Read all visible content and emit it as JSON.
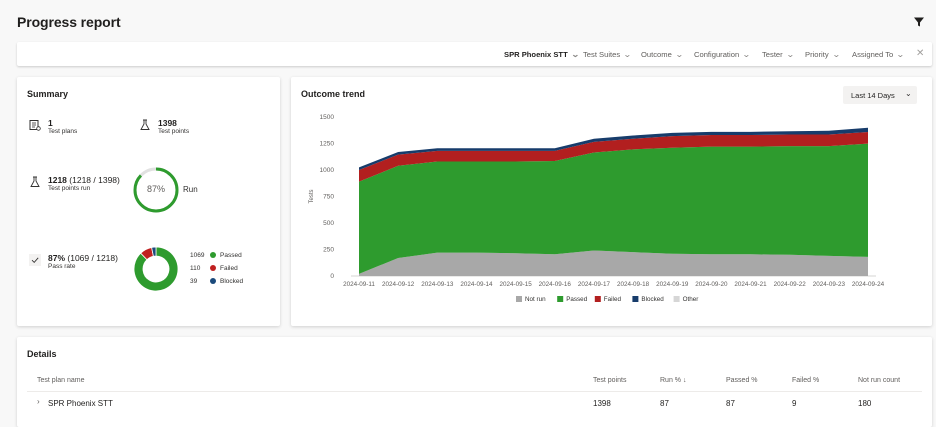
{
  "page": {
    "title": "Progress report"
  },
  "filters": [
    {
      "label": "SPR Phoenix STT",
      "bold": true
    },
    {
      "label": "Test Suites"
    },
    {
      "label": "Outcome"
    },
    {
      "label": "Configuration"
    },
    {
      "label": "Tester"
    },
    {
      "label": "Priority"
    },
    {
      "label": "Assigned To"
    }
  ],
  "summary": {
    "title": "Summary",
    "test_plans": {
      "value": "1",
      "label": "Test plans"
    },
    "test_points": {
      "value": "1398",
      "label": "Test points"
    },
    "points_run": {
      "value": "1218",
      "detail": "(1218 / 1398)",
      "label": "Test points run",
      "ring_percent": "87%",
      "ring_label": "Run",
      "fraction": 0.871
    },
    "pass_rate": {
      "value": "87%",
      "detail": "(1069 / 1218)",
      "label": "Pass rate"
    },
    "donut": [
      {
        "count": "1069",
        "label": "Passed",
        "color": "#2e9b2e",
        "value": 1069
      },
      {
        "count": "110",
        "label": "Failed",
        "color": "#c02020",
        "value": 110
      },
      {
        "count": "39",
        "label": "Blocked",
        "color": "#1b4a7c",
        "value": 39
      }
    ]
  },
  "trend": {
    "title": "Outcome trend",
    "range_button": "Last 14 Days",
    "legend": [
      {
        "label": "Not run",
        "color": "#a8a8a8"
      },
      {
        "label": "Passed",
        "color": "#2e9b2e"
      },
      {
        "label": "Failed",
        "color": "#b21f1f"
      },
      {
        "label": "Blocked",
        "color": "#173c6b"
      },
      {
        "label": "Other",
        "color": "#d6d6d6"
      }
    ]
  },
  "chart_data": {
    "type": "area",
    "title": "Outcome trend",
    "xlabel": "",
    "ylabel": "Tests",
    "ylim": [
      0,
      1500
    ],
    "yticks": [
      0,
      250,
      500,
      750,
      1000,
      1250,
      1500
    ],
    "categories": [
      "2024-09-11",
      "2024-09-12",
      "2024-09-13",
      "2024-09-14",
      "2024-09-15",
      "2024-09-16",
      "2024-09-17",
      "2024-09-18",
      "2024-09-19",
      "2024-09-20",
      "2024-09-21",
      "2024-09-22",
      "2024-09-23",
      "2024-09-24"
    ],
    "stacked": true,
    "series": [
      {
        "name": "Not run",
        "color": "#a8a8a8",
        "values": [
          20,
          170,
          220,
          220,
          215,
          205,
          240,
          225,
          210,
          205,
          205,
          200,
          190,
          180
        ]
      },
      {
        "name": "Passed",
        "color": "#2e9b2e",
        "values": [
          870,
          870,
          860,
          860,
          865,
          880,
          925,
          970,
          1000,
          1015,
          1015,
          1025,
          1035,
          1069
        ]
      },
      {
        "name": "Failed",
        "color": "#b21f1f",
        "values": [
          110,
          105,
          100,
          100,
          100,
          95,
          100,
          100,
          110,
          110,
          110,
          110,
          110,
          110
        ]
      },
      {
        "name": "Blocked",
        "color": "#173c6b",
        "values": [
          25,
          25,
          25,
          25,
          25,
          25,
          30,
          30,
          30,
          30,
          30,
          30,
          35,
          39
        ]
      },
      {
        "name": "Other",
        "color": "#d6d6d6",
        "values": [
          0,
          0,
          0,
          0,
          0,
          0,
          0,
          0,
          0,
          0,
          0,
          0,
          0,
          0
        ]
      }
    ],
    "legend_position": "bottom",
    "grid": false
  },
  "details": {
    "title": "Details",
    "columns": [
      "Test plan name",
      "Test points",
      "Run %",
      "Passed %",
      "Failed %",
      "Not run count"
    ],
    "sort_indicator": "↓",
    "rows": [
      {
        "name": "SPR Phoenix STT",
        "test_points": "1398",
        "run": "87",
        "passed": "87",
        "failed": "9",
        "not_run": "180"
      }
    ]
  }
}
